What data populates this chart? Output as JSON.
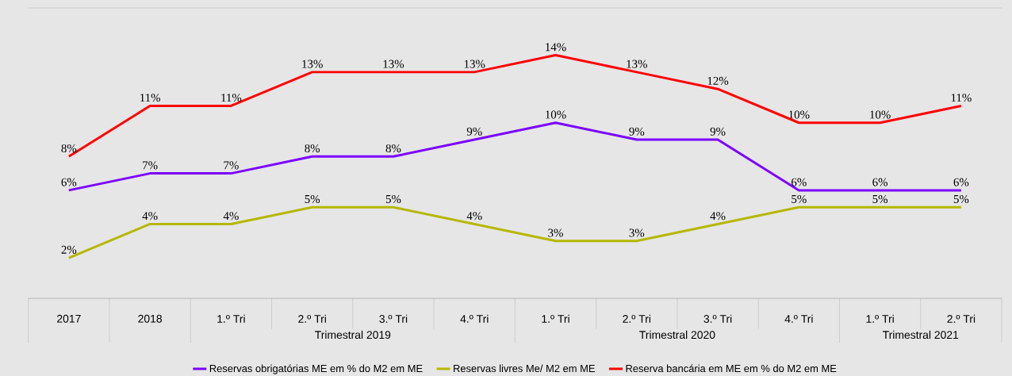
{
  "chart_data": {
    "type": "line",
    "categories": [
      "2017",
      "2018",
      "1.º Tri",
      "2.º Tri",
      "3.º Tri",
      "4.º Tri",
      "1.º Tri",
      "2.º Tri",
      "3.º Tri",
      "4.º Tri",
      "1.º Tri",
      "2.º Tri"
    ],
    "annotations": [
      "Trimestral 2019",
      "Trimestral 2020",
      "Trimestral 2021"
    ],
    "series": [
      {
        "name": "Reservas obrigatórias ME em % do M2 em ME",
        "color": "#7b00ff",
        "values": [
          6,
          7,
          7,
          8,
          8,
          9,
          10,
          9,
          9,
          6,
          6,
          6
        ],
        "value_labels": [
          "6%",
          "7%",
          "7%",
          "8%",
          "8%",
          "9%",
          "10%",
          "9%",
          "9%",
          "6%",
          "6%",
          "6%"
        ]
      },
      {
        "name": "Reservas livres Me/ M2 em ME",
        "color": "#b5b800",
        "values": [
          2,
          4,
          4,
          5,
          5,
          4,
          3,
          3,
          4,
          5,
          5,
          5
        ],
        "value_labels": [
          "2%",
          "4%",
          "4%",
          "5%",
          "5%",
          "4%",
          "3%",
          "3%",
          "4%",
          "5%",
          "5%",
          "5%"
        ]
      },
      {
        "name": "Reserva bancária em ME em % do M2 em ME",
        "color": "#ff0000",
        "values": [
          8,
          11,
          11,
          13,
          13,
          13,
          14,
          13,
          12,
          10,
          10,
          11
        ],
        "value_labels": [
          "8%",
          "11%",
          "11%",
          "13%",
          "13%",
          "13%",
          "14%",
          "13%",
          "12%",
          "10%",
          "10%",
          "11%"
        ]
      }
    ],
    "legend": "bottom",
    "marker": "none",
    "line_style": "solid"
  }
}
